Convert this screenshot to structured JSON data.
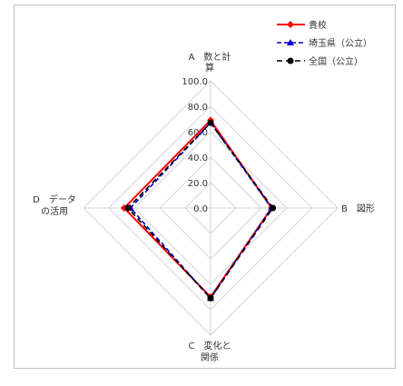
{
  "chart_data": {
    "type": "radar",
    "rmax": 100,
    "ticks": [
      "100.0",
      "80.0",
      "60.0",
      "40.0",
      "20.0",
      "0.0"
    ],
    "tick_values": [
      100,
      80,
      60,
      40,
      20,
      0
    ],
    "axes": [
      {
        "id": "A",
        "line1": "A　数と計",
        "line2": "算"
      },
      {
        "id": "B",
        "line1": "B　図形",
        "line2": ""
      },
      {
        "id": "C",
        "line1": "C　変化と",
        "line2": "関係"
      },
      {
        "id": "D",
        "line1": "D　データ",
        "line2": "の活用"
      }
    ],
    "series": [
      {
        "name": "貴校",
        "color": "#ff0000",
        "dash": "",
        "marker": "diamond",
        "values": [
          69,
          48,
          70,
          68
        ]
      },
      {
        "name": "埼玉県（公立）",
        "color": "#0000cc",
        "dash": "5,3",
        "marker": "triangle",
        "values": [
          67,
          48,
          71,
          63
        ]
      },
      {
        "name": "全国（公立）",
        "color": "#000000",
        "dash": "6,4",
        "marker": "circle",
        "values": [
          67,
          49,
          71,
          65
        ]
      }
    ],
    "grid": true,
    "legend_position": "top-right"
  },
  "colors": {
    "grid": "#d6d6d6",
    "border": "#9a9a9a"
  }
}
